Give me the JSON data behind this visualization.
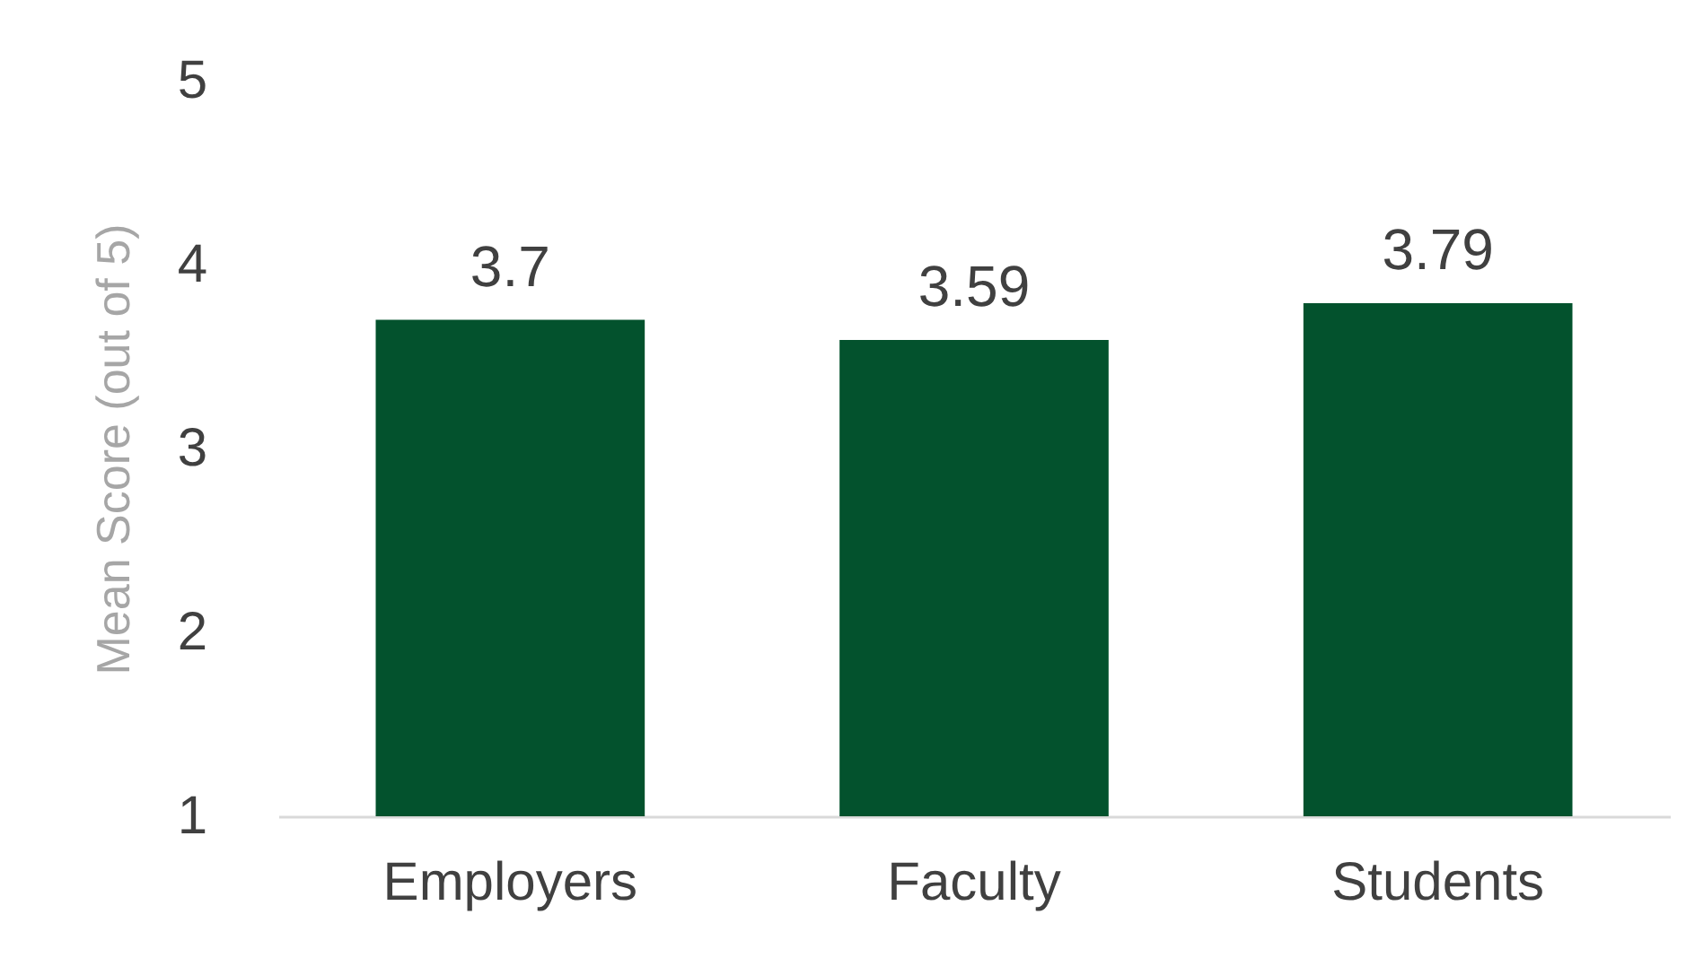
{
  "chart_data": {
    "type": "bar",
    "ylabel": "Mean Score (out of 5)",
    "categories": [
      "Employers",
      "Faculty",
      "Students"
    ],
    "values": [
      3.7,
      3.59,
      3.79
    ],
    "color": "#03522d",
    "ylim": [
      1,
      5
    ],
    "yticks": [
      1,
      2,
      3,
      4,
      5
    ],
    "grid": false,
    "data_labels": true
  }
}
